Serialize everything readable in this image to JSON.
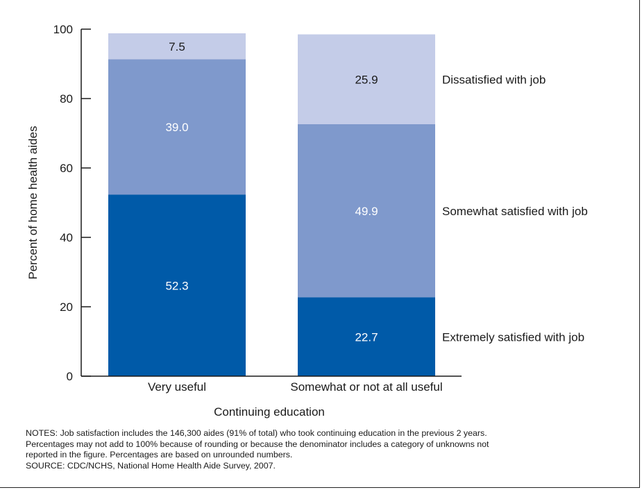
{
  "chart_data": {
    "type": "bar",
    "stacked": true,
    "categories": [
      "Very useful",
      "Somewhat or not at all useful"
    ],
    "series": [
      {
        "name": "Extremely satisfied with job",
        "values": [
          52.3,
          22.7
        ],
        "color": "#005aa8",
        "label_color": "#ffffff"
      },
      {
        "name": "Somewhat satisfied with job",
        "values": [
          39.0,
          49.9
        ],
        "color": "#7f99cc",
        "label_color": "#ffffff"
      },
      {
        "name": "Dissatisfied with job",
        "values": [
          7.5,
          25.9
        ],
        "color": "#c4cce8",
        "label_color": "#1a1a1a"
      }
    ],
    "xlabel": "Continuing education",
    "ylabel": "Percent of home health aides",
    "ylim": [
      0,
      100
    ],
    "yticks": [
      0,
      20,
      40,
      60,
      80,
      100
    ],
    "grid": false,
    "legend": "right, series labels beside the right bar"
  },
  "notes": [
    "NOTES: Job satisfaction includes the 146,300 aides (91% of total) who took continuing education in the previous 2 years.",
    "Percentages may not add to 100% because of rounding or because the denominator includes a category of unknowns not",
    "reported in the figure. Percentages are based on unrounded numbers.",
    "SOURCE: CDC/NCHS, National Home Health Aide Survey, 2007."
  ]
}
